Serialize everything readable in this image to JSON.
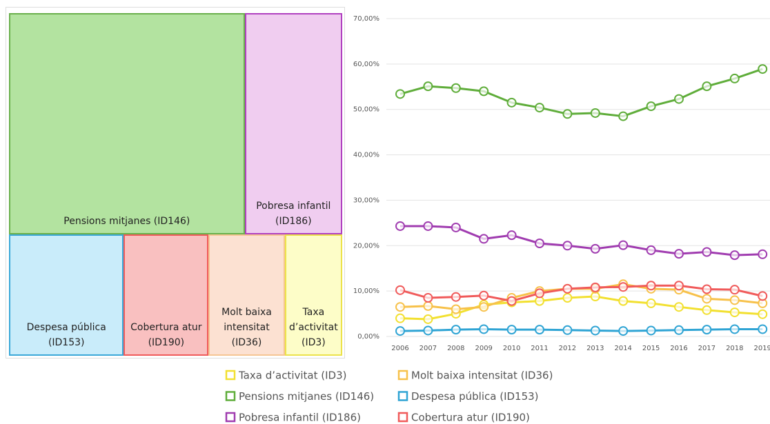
{
  "chart_data": [
    {
      "type": "treemap",
      "categories": [
        "Pensions mitjanes (ID146)",
        "Pobresa infantil (ID186)",
        "Despesa pública (ID153)",
        "Cobertura atur (ID190)",
        "Molt baixa intensitat (ID36)",
        "Taxa d’activitat (ID3)"
      ],
      "values": [
        45.7,
        18.9,
        12.2,
        9.0,
        8.1,
        6.1
      ],
      "colors": [
        "#b3e3a0",
        "#f0cdf0",
        "#c9ecfa",
        "#f9c0c0",
        "#fce1d2",
        "#fdfdc8"
      ],
      "border_colors": [
        "#6ab04c",
        "#b040c0",
        "#3aa8d8",
        "#f05a5a",
        "#f5c593",
        "#ece24a"
      ]
    },
    {
      "type": "line",
      "categories": [
        "2006",
        "2007",
        "2008",
        "2009",
        "2010",
        "2011",
        "2012",
        "2013",
        "2014",
        "2015",
        "2016",
        "2017",
        "2018",
        "2019"
      ],
      "ylim": [
        0,
        70
      ],
      "yticks": [
        {
          "value": 0,
          "label": "0,00%"
        },
        {
          "value": 10,
          "label": "10,00%"
        },
        {
          "value": 20,
          "label": "20,00%"
        },
        {
          "value": 30,
          "label": "30,00%"
        },
        {
          "value": 40,
          "label": "40,00%"
        },
        {
          "value": 50,
          "label": "50,00%"
        },
        {
          "value": 60,
          "label": "60,00%"
        },
        {
          "value": 70,
          "label": "70,00%"
        }
      ],
      "grid": true,
      "series": [
        {
          "name": "Taxa d’activitat (ID3)",
          "color": "#f2e030",
          "values": [
            4.0,
            3.8,
            5.0,
            7.0,
            7.5,
            7.8,
            8.5,
            8.8,
            7.8,
            7.3,
            6.5,
            5.8,
            5.3,
            4.9
          ]
        },
        {
          "name": "Molt baixa intensitat (ID36)",
          "color": "#f7c14a",
          "values": [
            6.5,
            6.7,
            6.0,
            6.5,
            8.5,
            10.0,
            10.5,
            10.5,
            11.5,
            10.5,
            10.3,
            8.3,
            8.0,
            7.3
          ]
        },
        {
          "name": "Pensions mitjanes (ID146)",
          "color": "#5fad3a",
          "values": [
            53.4,
            55.1,
            54.7,
            54.0,
            51.5,
            50.4,
            49.0,
            49.2,
            48.5,
            50.7,
            52.3,
            55.1,
            56.8,
            58.9
          ]
        },
        {
          "name": "Despesa pública (ID153)",
          "color": "#2fa4d4",
          "values": [
            1.2,
            1.3,
            1.5,
            1.6,
            1.5,
            1.5,
            1.4,
            1.3,
            1.2,
            1.3,
            1.4,
            1.5,
            1.6,
            1.6
          ]
        },
        {
          "name": "Pobresa infantil (ID186)",
          "color": "#a03cb0",
          "values": [
            24.3,
            24.3,
            24.0,
            21.5,
            22.3,
            20.5,
            20.0,
            19.3,
            20.1,
            19.0,
            18.2,
            18.6,
            17.9,
            18.1
          ]
        },
        {
          "name": "Cobertura atur (ID190)",
          "color": "#f05a5a",
          "values": [
            10.2,
            8.5,
            8.7,
            9.0,
            7.8,
            9.5,
            10.5,
            10.8,
            10.9,
            11.2,
            11.2,
            10.4,
            10.3,
            8.9
          ]
        }
      ]
    }
  ]
}
